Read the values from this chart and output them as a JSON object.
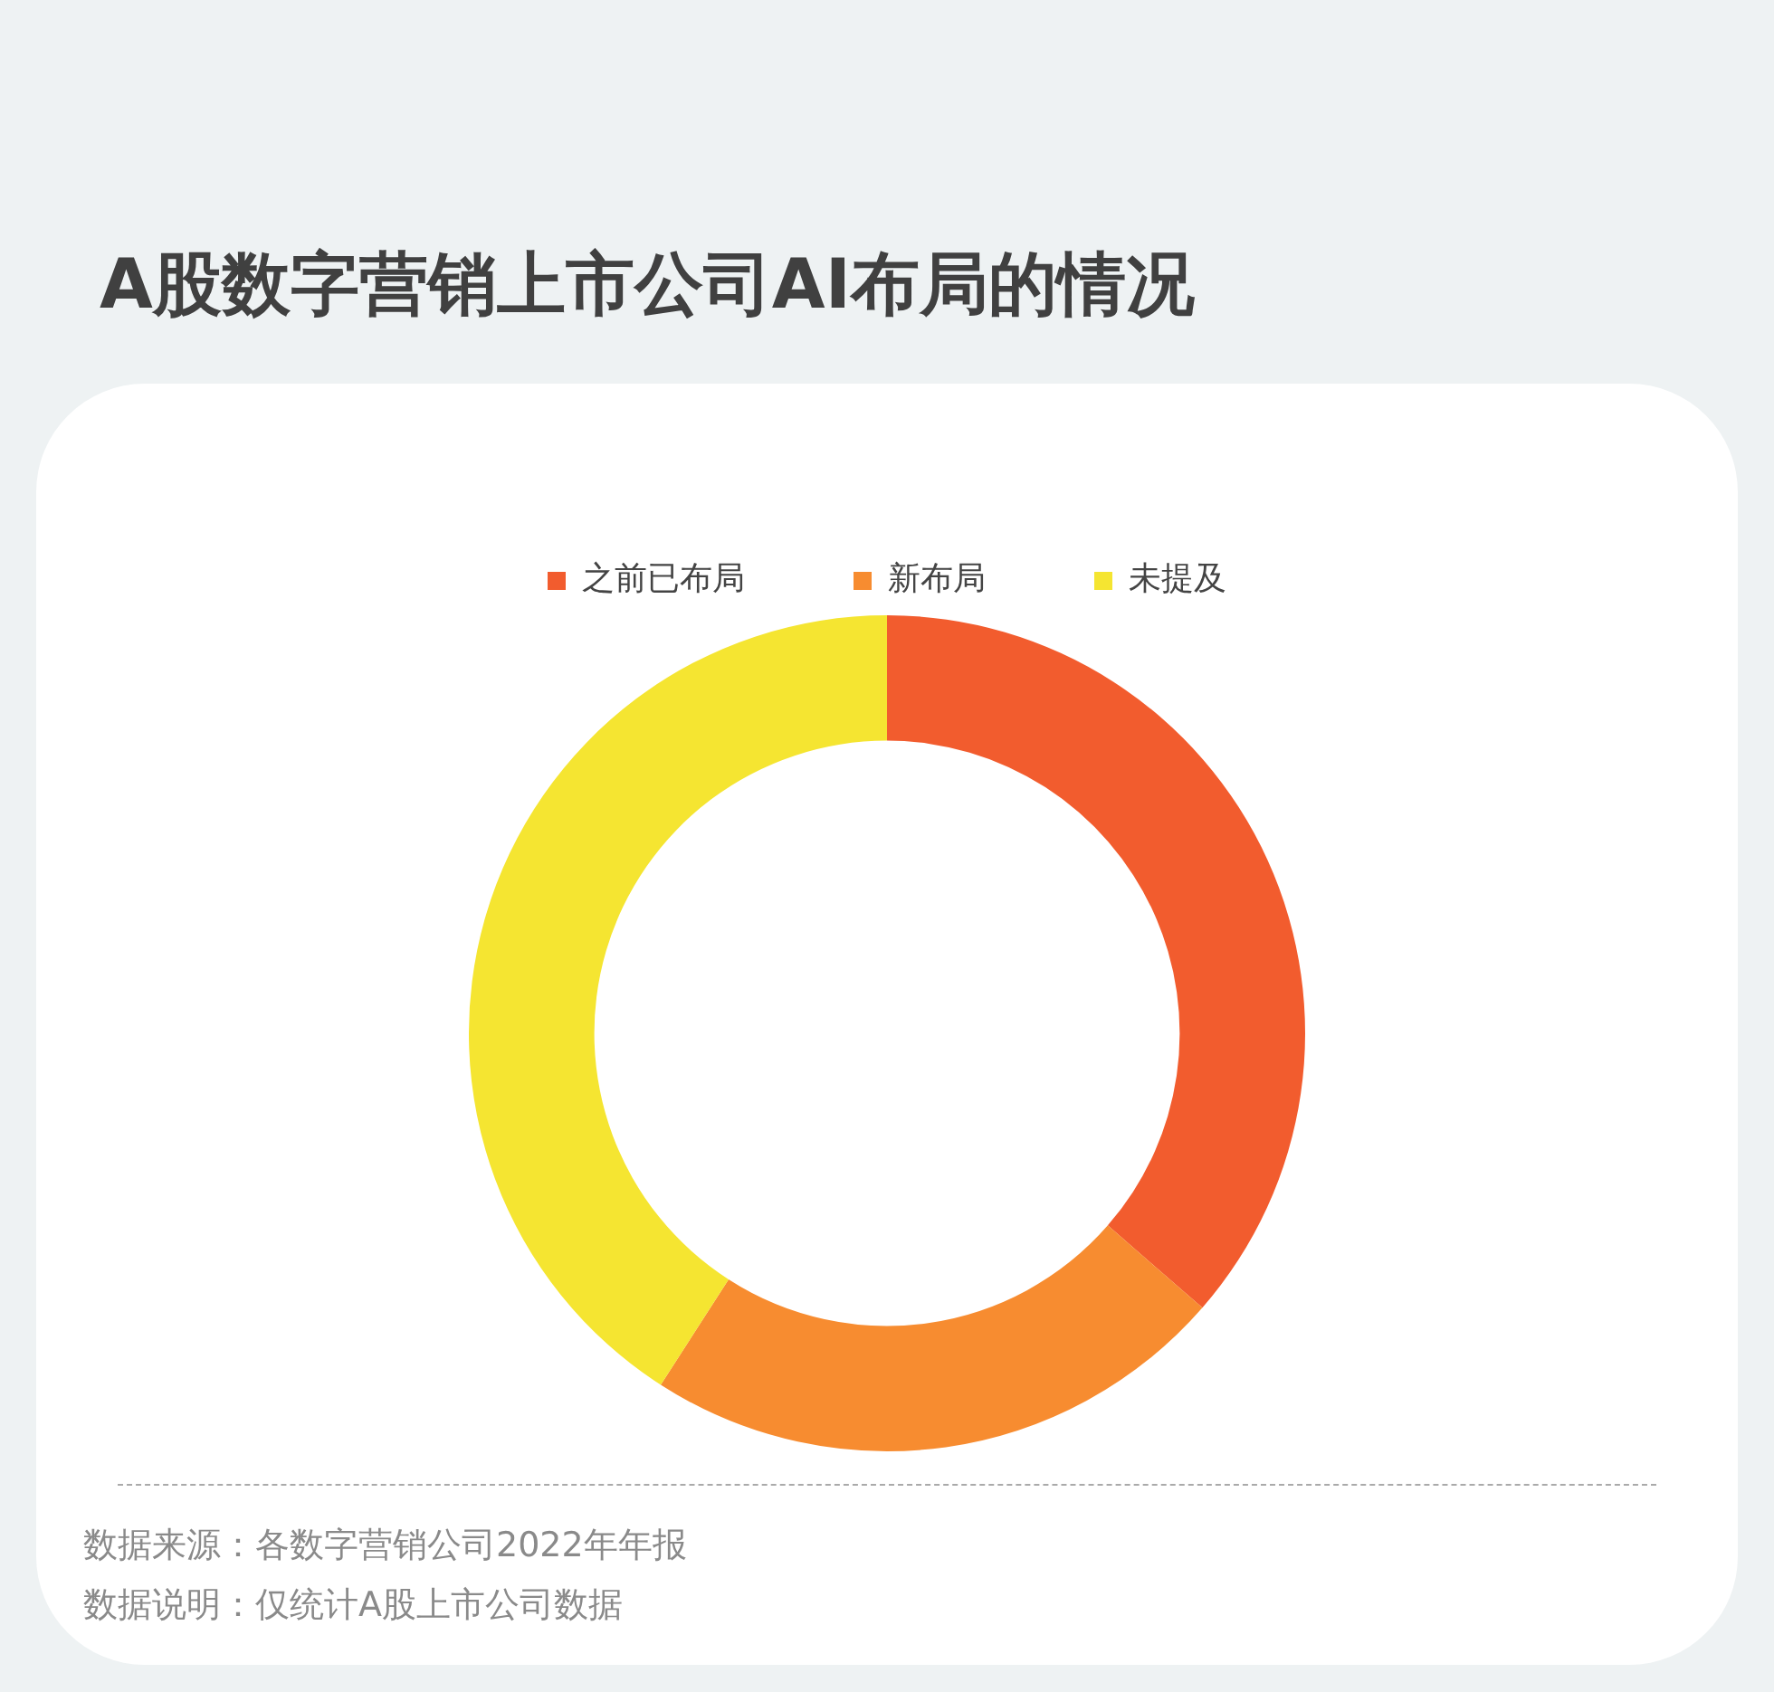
{
  "chart_data": {
    "type": "donut",
    "title": "A股数字营销上市公司AI布局的情况",
    "categories": [
      "之前已布局",
      "新布局",
      "未提及"
    ],
    "values": [
      36.4,
      22.7,
      40.9
    ],
    "colors": [
      "#f25c2e",
      "#f78c30",
      "#f5e531"
    ],
    "legend": "top",
    "annotations": [
      "数据来源：各数字营销公司2022年年报",
      "数据说明：仅统计A股上市公司数据"
    ]
  }
}
